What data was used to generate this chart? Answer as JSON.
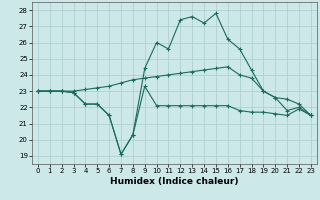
{
  "title": "",
  "xlabel": "Humidex (Indice chaleur)",
  "bg_color": "#cce8e8",
  "grid_color": "#aacccc",
  "line_color": "#1a6b5a",
  "xlim": [
    -0.5,
    23.5
  ],
  "ylim": [
    18.5,
    28.5
  ],
  "yticks": [
    19,
    20,
    21,
    22,
    23,
    24,
    25,
    26,
    27,
    28
  ],
  "xticks": [
    0,
    1,
    2,
    3,
    4,
    5,
    6,
    7,
    8,
    9,
    10,
    11,
    12,
    13,
    14,
    15,
    16,
    17,
    18,
    19,
    20,
    21,
    22,
    23
  ],
  "line1_x": [
    0,
    1,
    2,
    3,
    4,
    5,
    6,
    7,
    8,
    9,
    10,
    11,
    12,
    13,
    14,
    15,
    16,
    17,
    18,
    19,
    20,
    21,
    22,
    23
  ],
  "line1_y": [
    23.0,
    23.0,
    23.0,
    22.9,
    22.2,
    22.2,
    21.5,
    19.1,
    20.3,
    23.3,
    22.1,
    22.1,
    22.1,
    22.1,
    22.1,
    22.1,
    22.1,
    21.8,
    21.7,
    21.7,
    21.6,
    21.5,
    21.9,
    21.5
  ],
  "line2_x": [
    0,
    1,
    2,
    3,
    4,
    5,
    6,
    7,
    8,
    9,
    10,
    11,
    12,
    13,
    14,
    15,
    16,
    17,
    18,
    19,
    20,
    21,
    22,
    23
  ],
  "line2_y": [
    23.0,
    23.0,
    23.0,
    22.9,
    22.2,
    22.2,
    21.5,
    19.1,
    20.3,
    24.4,
    26.0,
    25.6,
    27.4,
    27.6,
    27.2,
    27.8,
    26.2,
    25.6,
    24.3,
    23.0,
    22.6,
    21.8,
    22.0,
    21.5
  ],
  "line3_x": [
    0,
    1,
    2,
    3,
    4,
    5,
    6,
    7,
    8,
    9,
    10,
    11,
    12,
    13,
    14,
    15,
    16,
    17,
    18,
    19,
    20,
    21,
    22,
    23
  ],
  "line3_y": [
    23.0,
    23.0,
    23.0,
    23.0,
    23.1,
    23.2,
    23.3,
    23.5,
    23.7,
    23.8,
    23.9,
    24.0,
    24.1,
    24.2,
    24.3,
    24.4,
    24.5,
    24.0,
    23.8,
    23.0,
    22.6,
    22.5,
    22.2,
    21.5
  ]
}
